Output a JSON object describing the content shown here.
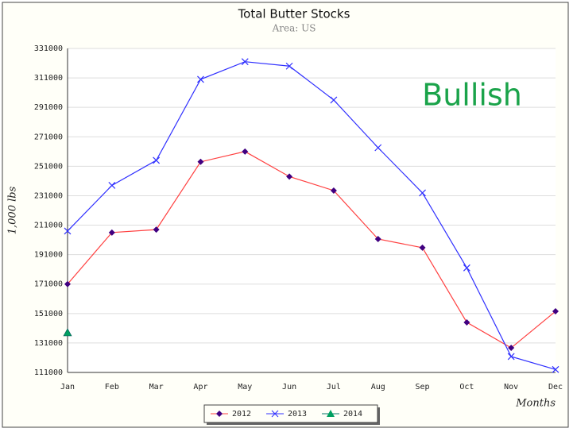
{
  "chart_data": {
    "type": "line",
    "title": "Total Butter Stocks",
    "subtitle": "Area: US",
    "y_label": "1,000 lbs",
    "x_label": "Months",
    "annotation": "Bullish",
    "annotation_color": "#1aa34a",
    "categories": [
      "Jan",
      "Feb",
      "Mar",
      "Apr",
      "May",
      "Jun",
      "Jul",
      "Aug",
      "Sep",
      "Oct",
      "Nov",
      "Dec"
    ],
    "series": [
      {
        "name": "2012",
        "color": "#ff4040",
        "marker": "diamond",
        "marker_color": "#400080",
        "values": [
          171000,
          206000,
          208000,
          254000,
          261000,
          244000,
          234500,
          201600,
          195700,
          145000,
          127700,
          152500
        ]
      },
      {
        "name": "2013",
        "color": "#3030ff",
        "marker": "cross",
        "marker_color": "#3030ff",
        "values": [
          207000,
          238000,
          255000,
          310000,
          322000,
          319000,
          296000,
          263600,
          232900,
          182000,
          121800,
          113000
        ]
      },
      {
        "name": "2014",
        "color": "#0a7a6a",
        "marker": "triangle",
        "marker_color": "#00a060",
        "values": [
          138000,
          null,
          null,
          null,
          null,
          null,
          null,
          null,
          null,
          null,
          null,
          null
        ]
      }
    ],
    "ylim": [
      111000,
      331000
    ],
    "yticks": [
      111000,
      131000,
      151000,
      171000,
      191000,
      211000,
      231000,
      251000,
      271000,
      291000,
      311000,
      331000
    ],
    "grid": true,
    "legend": "bottom"
  }
}
